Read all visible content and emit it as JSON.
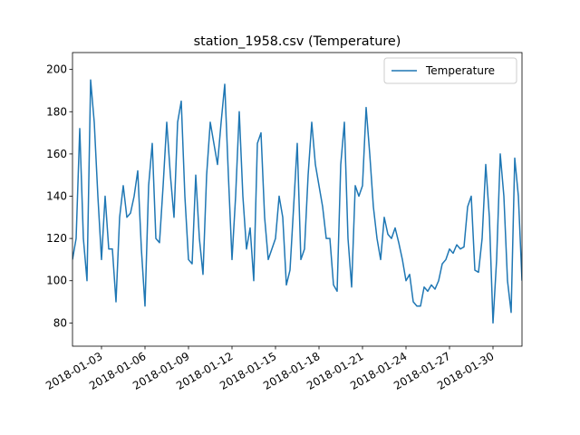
{
  "chart_data": {
    "type": "line",
    "title": "station_1958.csv (Temperature)",
    "x": [
      "2018-01-01 00:00",
      "2018-01-01 06:00",
      "2018-01-01 12:00",
      "2018-01-01 18:00",
      "2018-01-02 00:00",
      "2018-01-02 06:00",
      "2018-01-02 12:00",
      "2018-01-02 18:00",
      "2018-01-03 00:00",
      "2018-01-03 06:00",
      "2018-01-03 12:00",
      "2018-01-03 18:00",
      "2018-01-04 00:00",
      "2018-01-04 06:00",
      "2018-01-04 12:00",
      "2018-01-04 18:00",
      "2018-01-05 00:00",
      "2018-01-05 06:00",
      "2018-01-05 12:00",
      "2018-01-05 18:00",
      "2018-01-06 00:00",
      "2018-01-06 06:00",
      "2018-01-06 12:00",
      "2018-01-06 18:00",
      "2018-01-07 00:00",
      "2018-01-07 06:00",
      "2018-01-07 12:00",
      "2018-01-07 18:00",
      "2018-01-08 00:00",
      "2018-01-08 06:00",
      "2018-01-08 12:00",
      "2018-01-08 18:00",
      "2018-01-09 00:00",
      "2018-01-09 06:00",
      "2018-01-09 12:00",
      "2018-01-09 18:00",
      "2018-01-10 00:00",
      "2018-01-10 06:00",
      "2018-01-10 12:00",
      "2018-01-10 18:00",
      "2018-01-11 00:00",
      "2018-01-11 06:00",
      "2018-01-11 12:00",
      "2018-01-11 18:00",
      "2018-01-12 00:00",
      "2018-01-12 06:00",
      "2018-01-12 12:00",
      "2018-01-12 18:00",
      "2018-01-13 00:00",
      "2018-01-13 06:00",
      "2018-01-13 12:00",
      "2018-01-13 18:00",
      "2018-01-14 00:00",
      "2018-01-14 06:00",
      "2018-01-14 12:00",
      "2018-01-14 18:00",
      "2018-01-15 00:00",
      "2018-01-15 06:00",
      "2018-01-15 12:00",
      "2018-01-15 18:00",
      "2018-01-16 00:00",
      "2018-01-16 06:00",
      "2018-01-16 12:00",
      "2018-01-16 18:00",
      "2018-01-17 00:00",
      "2018-01-17 06:00",
      "2018-01-17 12:00",
      "2018-01-17 18:00",
      "2018-01-18 00:00",
      "2018-01-18 06:00",
      "2018-01-18 12:00",
      "2018-01-18 18:00",
      "2018-01-19 00:00",
      "2018-01-19 06:00",
      "2018-01-19 12:00",
      "2018-01-19 18:00",
      "2018-01-20 00:00",
      "2018-01-20 06:00",
      "2018-01-20 12:00",
      "2018-01-20 18:00",
      "2018-01-21 00:00",
      "2018-01-21 06:00",
      "2018-01-21 12:00",
      "2018-01-21 18:00",
      "2018-01-22 00:00",
      "2018-01-22 06:00",
      "2018-01-22 12:00",
      "2018-01-22 18:00",
      "2018-01-23 00:00",
      "2018-01-23 06:00",
      "2018-01-23 12:00",
      "2018-01-23 18:00",
      "2018-01-24 00:00",
      "2018-01-24 06:00",
      "2018-01-24 12:00",
      "2018-01-24 18:00",
      "2018-01-25 00:00",
      "2018-01-25 06:00",
      "2018-01-25 12:00",
      "2018-01-25 18:00",
      "2018-01-26 00:00",
      "2018-01-26 06:00",
      "2018-01-26 12:00",
      "2018-01-26 18:00",
      "2018-01-27 00:00",
      "2018-01-27 06:00",
      "2018-01-27 12:00",
      "2018-01-27 18:00",
      "2018-01-28 00:00",
      "2018-01-28 06:00",
      "2018-01-28 12:00",
      "2018-01-28 18:00",
      "2018-01-29 00:00",
      "2018-01-29 06:00",
      "2018-01-29 12:00",
      "2018-01-29 18:00",
      "2018-01-30 00:00",
      "2018-01-30 06:00",
      "2018-01-30 12:00",
      "2018-01-30 18:00",
      "2018-01-31 00:00",
      "2018-01-31 06:00",
      "2018-01-31 12:00",
      "2018-01-31 18:00",
      "2018-02-01 00:00"
    ],
    "series": [
      {
        "name": "Temperature",
        "color": "#1f77b4",
        "values": [
          110,
          120,
          172,
          120,
          100,
          195,
          175,
          140,
          110,
          140,
          115,
          115,
          90,
          130,
          145,
          130,
          132,
          140,
          152,
          115,
          88,
          145,
          165,
          120,
          118,
          145,
          175,
          150,
          130,
          175,
          185,
          140,
          110,
          108,
          150,
          120,
          103,
          150,
          175,
          165,
          155,
          175,
          193,
          150,
          110,
          140,
          180,
          140,
          115,
          125,
          100,
          165,
          170,
          130,
          110,
          115,
          120,
          140,
          130,
          98,
          105,
          135,
          165,
          110,
          115,
          150,
          175,
          155,
          145,
          135,
          120,
          120,
          98,
          95,
          155,
          175,
          120,
          97,
          145,
          140,
          145,
          182,
          160,
          135,
          120,
          110,
          130,
          122,
          120,
          125,
          118,
          110,
          100,
          103,
          90,
          88,
          88,
          97,
          95,
          98,
          96,
          100,
          108,
          110,
          115,
          113,
          117,
          115,
          116,
          135,
          140,
          105,
          104,
          120,
          155,
          130,
          80,
          110,
          160,
          140,
          100,
          85,
          158,
          140,
          100
        ]
      }
    ],
    "xlim": [
      "2018-01-01",
      "2018-02-01"
    ],
    "xticks": [
      "2018-01-03",
      "2018-01-06",
      "2018-01-09",
      "2018-01-12",
      "2018-01-15",
      "2018-01-18",
      "2018-01-21",
      "2018-01-24",
      "2018-01-27",
      "2018-01-30"
    ],
    "ylim": [
      69,
      208
    ],
    "yticks": [
      80,
      100,
      120,
      140,
      160,
      180,
      200
    ],
    "grid": false,
    "legend": "upper right"
  }
}
